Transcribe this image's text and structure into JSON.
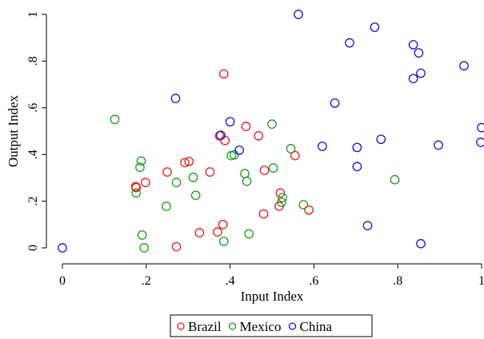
{
  "chart_data": {
    "type": "scatter",
    "xlabel": "Input Index",
    "ylabel": "Output Index",
    "xlim": [
      0,
      1
    ],
    "ylim": [
      0,
      1
    ],
    "xticks": [
      {
        "value": 0,
        "label": "0"
      },
      {
        "value": 0.2,
        "label": ".2"
      },
      {
        "value": 0.4,
        "label": ".4"
      },
      {
        "value": 0.6,
        "label": ".6"
      },
      {
        "value": 0.8,
        "label": ".8"
      },
      {
        "value": 1,
        "label": "1"
      }
    ],
    "yticks": [
      {
        "value": 0,
        "label": "0"
      },
      {
        "value": 0.2,
        "label": ".2"
      },
      {
        "value": 0.4,
        "label": ".4"
      },
      {
        "value": 0.6,
        "label": ".6"
      },
      {
        "value": 0.8,
        "label": ".8"
      },
      {
        "value": 1,
        "label": "1"
      }
    ],
    "grid": false,
    "legend_position": "bottom",
    "series": [
      {
        "name": "Brazil",
        "color": "#e8191e",
        "points": [
          [
            0.385,
            0.745
          ],
          [
            0.438,
            0.52
          ],
          [
            0.468,
            0.48
          ],
          [
            0.375,
            0.48
          ],
          [
            0.388,
            0.46
          ],
          [
            0.555,
            0.395
          ],
          [
            0.292,
            0.365
          ],
          [
            0.302,
            0.37
          ],
          [
            0.352,
            0.325
          ],
          [
            0.25,
            0.325
          ],
          [
            0.482,
            0.332
          ],
          [
            0.198,
            0.28
          ],
          [
            0.175,
            0.262
          ],
          [
            0.176,
            0.258
          ],
          [
            0.52,
            0.235
          ],
          [
            0.517,
            0.178
          ],
          [
            0.588,
            0.162
          ],
          [
            0.48,
            0.145
          ],
          [
            0.383,
            0.1
          ],
          [
            0.327,
            0.065
          ],
          [
            0.37,
            0.068
          ],
          [
            0.272,
            0.005
          ]
        ]
      },
      {
        "name": "Mexico",
        "color": "#1e9a1e",
        "points": [
          [
            0.125,
            0.55
          ],
          [
            0.5,
            0.53
          ],
          [
            0.545,
            0.425
          ],
          [
            0.403,
            0.395
          ],
          [
            0.41,
            0.398
          ],
          [
            0.188,
            0.372
          ],
          [
            0.185,
            0.345
          ],
          [
            0.435,
            0.318
          ],
          [
            0.503,
            0.342
          ],
          [
            0.312,
            0.302
          ],
          [
            0.272,
            0.28
          ],
          [
            0.44,
            0.285
          ],
          [
            0.176,
            0.235
          ],
          [
            0.318,
            0.225
          ],
          [
            0.525,
            0.215
          ],
          [
            0.523,
            0.195
          ],
          [
            0.793,
            0.292
          ],
          [
            0.575,
            0.185
          ],
          [
            0.248,
            0.178
          ],
          [
            0.19,
            0.055
          ],
          [
            0.445,
            0.06
          ],
          [
            0.385,
            0.028
          ],
          [
            0.195,
            0.0
          ]
        ]
      },
      {
        "name": "China",
        "color": "#1414d8",
        "points": [
          [
            0.563,
            1.0
          ],
          [
            0.745,
            0.945
          ],
          [
            0.685,
            0.878
          ],
          [
            0.837,
            0.87
          ],
          [
            0.85,
            0.835
          ],
          [
            0.958,
            0.78
          ],
          [
            0.855,
            0.748
          ],
          [
            0.837,
            0.725
          ],
          [
            0.27,
            0.64
          ],
          [
            0.65,
            0.62
          ],
          [
            0.4,
            0.54
          ],
          [
            1.0,
            0.515
          ],
          [
            0.378,
            0.482
          ],
          [
            0.76,
            0.465
          ],
          [
            0.998,
            0.452
          ],
          [
            0.897,
            0.44
          ],
          [
            0.62,
            0.435
          ],
          [
            0.703,
            0.43
          ],
          [
            0.422,
            0.418
          ],
          [
            0.703,
            0.348
          ],
          [
            0.728,
            0.095
          ],
          [
            0.855,
            0.018
          ],
          [
            0.0,
            0.0
          ]
        ]
      }
    ]
  }
}
